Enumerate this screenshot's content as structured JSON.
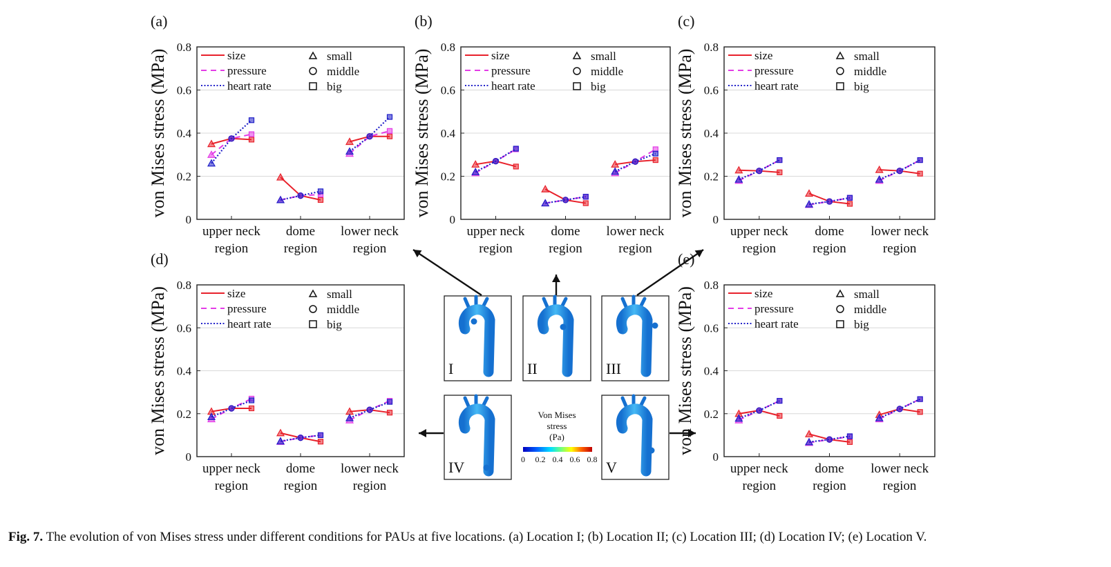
{
  "caption": {
    "label": "Fig. 7.",
    "text": "The evolution of von Mises stress under different conditions for PAUs at five locations. (a) Location I; (b) Location II; (c) Location III; (d) Location IV; (e) Location V."
  },
  "colors": {
    "size": "#e8202a",
    "pressure": "#e33be6",
    "heart_rate": "#2020c8",
    "aorta_dark": "#1570d0",
    "aorta_light": "#45b8f5"
  },
  "legend": {
    "lines": [
      "size",
      "pressure",
      "heart rate"
    ],
    "markers": [
      "small",
      "middle",
      "big"
    ]
  },
  "center": {
    "panel_labels": [
      "I",
      "II",
      "III",
      "IV",
      "V"
    ],
    "colorbar": {
      "title_lines": [
        "Von Mises",
        "stress",
        "(Pa)"
      ],
      "ticks": [
        "0",
        "0.2",
        "0.4",
        "0.6",
        "0.8"
      ]
    }
  },
  "chart_data": [
    {
      "panel": "(a)",
      "type": "line",
      "ylabel": "von Mises stress (MPa)",
      "ylim": [
        0,
        0.8
      ],
      "yticks": [
        "0",
        "0.2",
        "0.4",
        "0.6",
        "0.8"
      ],
      "categories": [
        [
          "upper neck",
          "region"
        ],
        [
          "dome",
          "region"
        ],
        [
          "lower neck",
          "region"
        ]
      ],
      "marker_levels": [
        "small",
        "middle",
        "big"
      ],
      "series": [
        {
          "name": "size",
          "values": [
            [
              0.35,
              0.375,
              0.37
            ],
            [
              0.195,
              0.11,
              0.09
            ],
            [
              0.36,
              0.385,
              0.385
            ]
          ]
        },
        {
          "name": "pressure",
          "values": [
            [
              0.3,
              0.375,
              0.395
            ],
            [
              0.09,
              0.11,
              0.115
            ],
            [
              0.305,
              0.385,
              0.41
            ]
          ]
        },
        {
          "name": "heart rate",
          "values": [
            [
              0.26,
              0.375,
              0.46
            ],
            [
              0.09,
              0.11,
              0.13
            ],
            [
              0.315,
              0.385,
              0.475
            ]
          ]
        }
      ]
    },
    {
      "panel": "(b)",
      "type": "line",
      "ylabel": "von Mises stress (MPa)",
      "ylim": [
        0,
        0.8
      ],
      "yticks": [
        "0",
        "0.2",
        "0.4",
        "0.6",
        "0.8"
      ],
      "categories": [
        [
          "upper neck",
          "region"
        ],
        [
          "dome",
          "region"
        ],
        [
          "lower neck",
          "region"
        ]
      ],
      "marker_levels": [
        "small",
        "middle",
        "big"
      ],
      "series": [
        {
          "name": "size",
          "values": [
            [
              0.255,
              0.27,
              0.245
            ],
            [
              0.14,
              0.09,
              0.075
            ],
            [
              0.255,
              0.268,
              0.275
            ]
          ]
        },
        {
          "name": "pressure",
          "values": [
            [
              0.215,
              0.27,
              0.325
            ],
            [
              0.075,
              0.09,
              0.105
            ],
            [
              0.215,
              0.268,
              0.325
            ]
          ]
        },
        {
          "name": "heart rate",
          "values": [
            [
              0.22,
              0.27,
              0.328
            ],
            [
              0.075,
              0.09,
              0.105
            ],
            [
              0.222,
              0.268,
              0.305
            ]
          ]
        }
      ]
    },
    {
      "panel": "(c)",
      "type": "line",
      "ylabel": "von Mises stress (MPa)",
      "ylim": [
        0,
        0.8
      ],
      "yticks": [
        "0",
        "0.2",
        "0.4",
        "0.6",
        "0.8"
      ],
      "categories": [
        [
          "upper neck",
          "region"
        ],
        [
          "dome",
          "region"
        ],
        [
          "lower neck",
          "region"
        ]
      ],
      "marker_levels": [
        "small",
        "middle",
        "big"
      ],
      "series": [
        {
          "name": "size",
          "values": [
            [
              0.228,
              0.225,
              0.218
            ],
            [
              0.12,
              0.083,
              0.072
            ],
            [
              0.23,
              0.225,
              0.212
            ]
          ]
        },
        {
          "name": "pressure",
          "values": [
            [
              0.18,
              0.225,
              0.275
            ],
            [
              0.068,
              0.083,
              0.1
            ],
            [
              0.18,
              0.225,
              0.275
            ]
          ]
        },
        {
          "name": "heart rate",
          "values": [
            [
              0.185,
              0.225,
              0.275
            ],
            [
              0.07,
              0.083,
              0.1
            ],
            [
              0.185,
              0.225,
              0.275
            ]
          ]
        }
      ]
    },
    {
      "panel": "(d)",
      "type": "line",
      "ylabel": "von Mises stress (MPa)",
      "ylim": [
        0,
        0.8
      ],
      "yticks": [
        "0",
        "0.2",
        "0.4",
        "0.6",
        "0.8"
      ],
      "categories": [
        [
          "upper neck",
          "region"
        ],
        [
          "dome",
          "region"
        ],
        [
          "lower neck",
          "region"
        ]
      ],
      "marker_levels": [
        "small",
        "middle",
        "big"
      ],
      "series": [
        {
          "name": "size",
          "values": [
            [
              0.21,
              0.225,
              0.225
            ],
            [
              0.11,
              0.088,
              0.07
            ],
            [
              0.21,
              0.218,
              0.205
            ]
          ]
        },
        {
          "name": "pressure",
          "values": [
            [
              0.175,
              0.225,
              0.27
            ],
            [
              0.07,
              0.088,
              0.1
            ],
            [
              0.17,
              0.218,
              0.26
            ]
          ]
        },
        {
          "name": "heart rate",
          "values": [
            [
              0.185,
              0.225,
              0.262
            ],
            [
              0.072,
              0.088,
              0.1
            ],
            [
              0.18,
              0.218,
              0.255
            ]
          ]
        }
      ]
    },
    {
      "panel": "(e)",
      "type": "line",
      "ylabel": "von Mises stress (MPa)",
      "ylim": [
        0,
        0.8
      ],
      "yticks": [
        "0",
        "0.2",
        "0.4",
        "0.6",
        "0.8"
      ],
      "categories": [
        [
          "upper neck",
          "region"
        ],
        [
          "dome",
          "region"
        ],
        [
          "lower neck",
          "region"
        ]
      ],
      "marker_levels": [
        "small",
        "middle",
        "big"
      ],
      "series": [
        {
          "name": "size",
          "values": [
            [
              0.2,
              0.215,
              0.19
            ],
            [
              0.105,
              0.08,
              0.068
            ],
            [
              0.195,
              0.222,
              0.208
            ]
          ]
        },
        {
          "name": "pressure",
          "values": [
            [
              0.17,
              0.215,
              0.26
            ],
            [
              0.065,
              0.08,
              0.093
            ],
            [
              0.175,
              0.222,
              0.268
            ]
          ]
        },
        {
          "name": "heart rate",
          "values": [
            [
              0.178,
              0.215,
              0.26
            ],
            [
              0.068,
              0.08,
              0.095
            ],
            [
              0.18,
              0.222,
              0.268
            ]
          ]
        }
      ]
    }
  ]
}
